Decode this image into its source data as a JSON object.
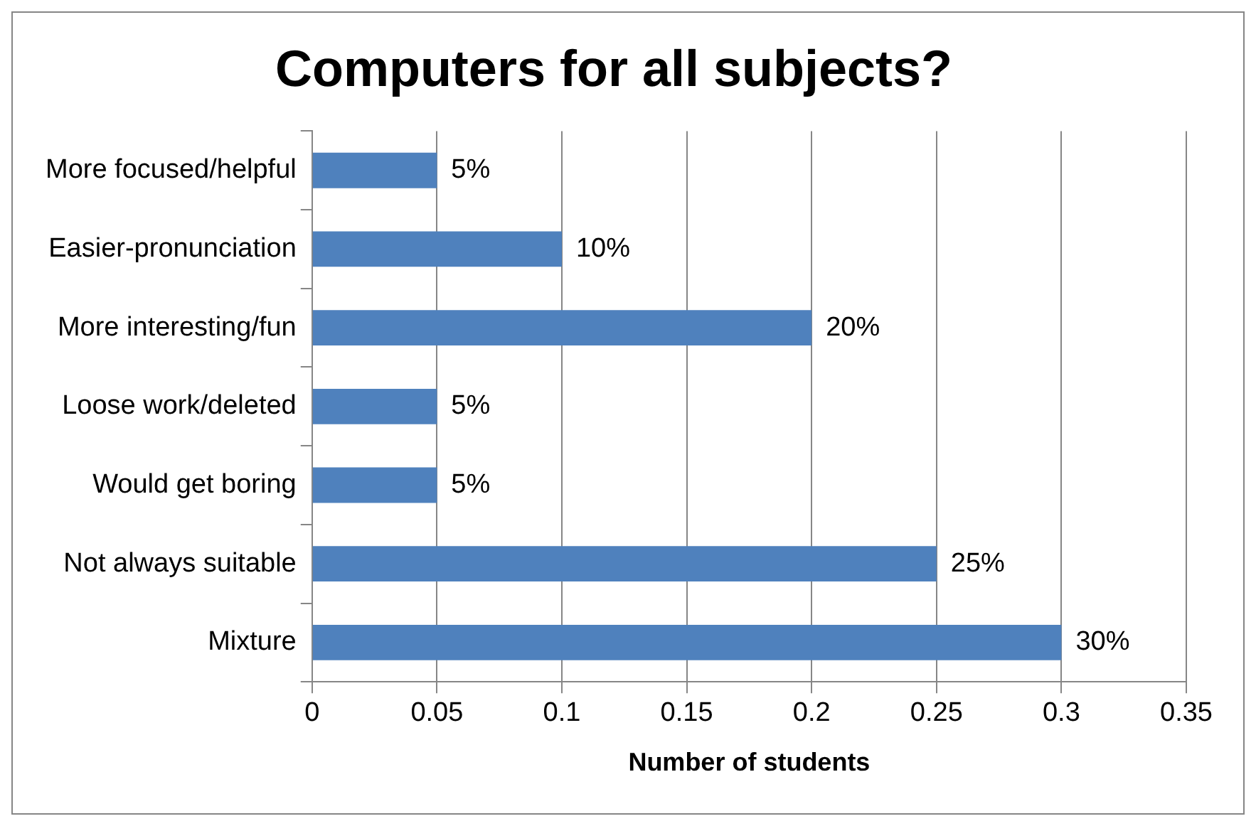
{
  "chart_data": {
    "type": "bar",
    "orientation": "horizontal",
    "title": "Computers for all subjects?",
    "xlabel": "Number of students",
    "categories": [
      "More focused/helpful",
      "Easier-pronunciation",
      "More interesting/fun",
      "Loose work/deleted",
      "Would get boring",
      "Not always suitable",
      "Mixture"
    ],
    "values": [
      0.05,
      0.1,
      0.2,
      0.05,
      0.05,
      0.25,
      0.3
    ],
    "value_labels": [
      "5%",
      "10%",
      "20%",
      "5%",
      "5%",
      "25%",
      "30%"
    ],
    "color": "#4f81bd",
    "xlim": [
      0,
      0.35
    ],
    "xticks": [
      0,
      0.05,
      0.1,
      0.15,
      0.2,
      0.25,
      0.3,
      0.35
    ],
    "grid": "x"
  }
}
